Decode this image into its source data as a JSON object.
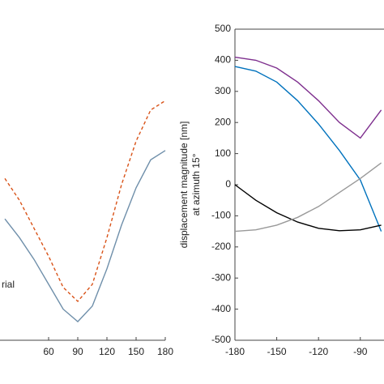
{
  "chart_data": [
    {
      "type": "line",
      "x": [
        15,
        30,
        45,
        60,
        75,
        90,
        105,
        120,
        135,
        150,
        165,
        180
      ],
      "series": [
        {
          "color": "#d95319",
          "dashed": true,
          "values": [
            52,
            45,
            36,
            27,
            17,
            12.5,
            18,
            33,
            50,
            64,
            74,
            77
          ]
        },
        {
          "name": "rial",
          "color": "#6f8faa",
          "values": [
            39,
            33,
            26,
            18,
            10,
            6,
            11,
            23,
            37,
            49,
            58,
            61
          ]
        }
      ],
      "xlim": [
        10,
        180
      ],
      "xticks": [
        60,
        90,
        120,
        150,
        180
      ],
      "ylim": [
        0,
        100
      ]
    },
    {
      "type": "line",
      "ylabel": [
        "displacement magnitude [nm]",
        "at azimuth 15°"
      ],
      "x": [
        -180,
        -165,
        -150,
        -135,
        -120,
        -105,
        -90,
        -75
      ],
      "series": [
        {
          "color": "#7e2f8e",
          "values": [
            410,
            400,
            375,
            330,
            270,
            200,
            150,
            240
          ]
        },
        {
          "color": "#0072bd",
          "values": [
            380,
            365,
            330,
            270,
            195,
            110,
            15,
            -150
          ]
        },
        {
          "color": "#000000",
          "values": [
            0,
            -50,
            -90,
            -120,
            -140,
            -148,
            -145,
            -130
          ]
        },
        {
          "color": "#999999",
          "values": [
            -150,
            -145,
            -130,
            -105,
            -70,
            -25,
            20,
            70
          ]
        }
      ],
      "xlim": [
        -180,
        -73
      ],
      "xticks": [
        -180,
        -150,
        -120,
        -90
      ],
      "ylim": [
        -500,
        500
      ],
      "yticks": [
        -500,
        -400,
        -300,
        -200,
        -100,
        0,
        100,
        200,
        300,
        400,
        500
      ]
    }
  ]
}
